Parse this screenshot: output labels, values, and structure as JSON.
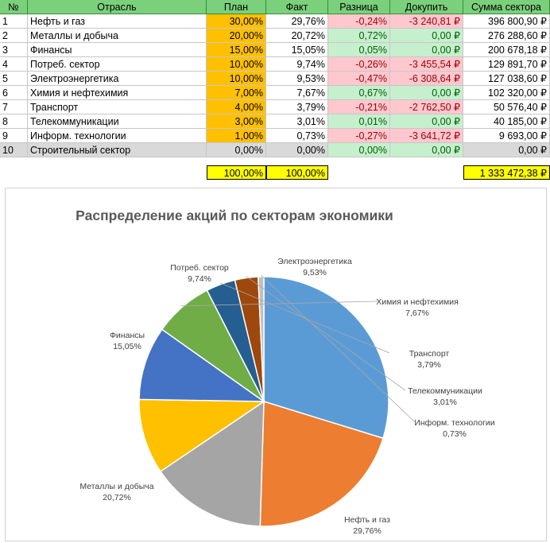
{
  "table": {
    "headers": [
      "№",
      "Отрасль",
      "План",
      "Факт",
      "Разница",
      "Докупить",
      "Сумма сектора"
    ],
    "rows": [
      {
        "n": "1",
        "sector": "Нефть и газ",
        "plan": "30,00%",
        "fact": "29,76%",
        "diff": "-0,24%",
        "buy": "-3 240,81 ₽",
        "sum": "396 800,90 ₽",
        "sign": "neg"
      },
      {
        "n": "2",
        "sector": "Металлы и добыча",
        "plan": "20,00%",
        "fact": "20,72%",
        "diff": "0,72%",
        "buy": "0,00 ₽",
        "sum": "276 288,60 ₽",
        "sign": "pos"
      },
      {
        "n": "3",
        "sector": "Финансы",
        "plan": "15,00%",
        "fact": "15,05%",
        "diff": "0,05%",
        "buy": "0,00 ₽",
        "sum": "200 678,18 ₽",
        "sign": "pos"
      },
      {
        "n": "4",
        "sector": "Потреб. сектор",
        "plan": "10,00%",
        "fact": "9,74%",
        "diff": "-0,26%",
        "buy": "-3 455,54 ₽",
        "sum": "129 891,70 ₽",
        "sign": "neg"
      },
      {
        "n": "5",
        "sector": "Электроэнергетика",
        "plan": "10,00%",
        "fact": "9,53%",
        "diff": "-0,47%",
        "buy": "-6 308,64 ₽",
        "sum": "127 038,60 ₽",
        "sign": "neg"
      },
      {
        "n": "6",
        "sector": "Химия и нефтехимия",
        "plan": "7,00%",
        "fact": "7,67%",
        "diff": "0,67%",
        "buy": "0,00 ₽",
        "sum": "102 320,00 ₽",
        "sign": "pos"
      },
      {
        "n": "7",
        "sector": "Транспорт",
        "plan": "4,00%",
        "fact": "3,79%",
        "diff": "-0,21%",
        "buy": "-2 762,50 ₽",
        "sum": "50 576,40 ₽",
        "sign": "neg"
      },
      {
        "n": "8",
        "sector": "Телекоммуникации",
        "plan": "3,00%",
        "fact": "3,01%",
        "diff": "0,01%",
        "buy": "0,00 ₽",
        "sum": "40 185,00 ₽",
        "sign": "pos"
      },
      {
        "n": "9",
        "sector": "Информ. технологии",
        "plan": "1,00%",
        "fact": "0,73%",
        "diff": "-0,27%",
        "buy": "-3 641,72 ₽",
        "sum": "9 693,00 ₽",
        "sign": "neg"
      },
      {
        "n": "10",
        "sector": "Строительный сектор",
        "plan": "0,00%",
        "fact": "0,00%",
        "diff": "0,00%",
        "buy": "0,00 ₽",
        "sum": "0,00 ₽",
        "sign": "pos"
      }
    ],
    "totals": {
      "plan": "100,00%",
      "fact": "100,00%",
      "sum": "1 333 472,38 ₽"
    }
  },
  "colors": {
    "header_green": "#7bd07b",
    "plan_orange": "#ffc000",
    "negative_fill": "#ffc7ce",
    "negative_text": "#9c0006",
    "positive_fill": "#c6efce",
    "positive_text": "#006100",
    "total_yellow": "#ffff00"
  },
  "chart_data": {
    "type": "pie",
    "title": "Распределение акций по секторам экономики",
    "slices": [
      {
        "label": "Нефть и газ",
        "value": 29.76,
        "value_label": "29,76%",
        "color": "#5b9bd5"
      },
      {
        "label": "Металлы и добыча",
        "value": 20.72,
        "value_label": "20,72%",
        "color": "#ed7d31"
      },
      {
        "label": "Финансы",
        "value": 15.05,
        "value_label": "15,05%",
        "color": "#a5a5a5"
      },
      {
        "label": "Потреб. сектор",
        "value": 9.74,
        "value_label": "9,74%",
        "color": "#ffc000"
      },
      {
        "label": "Электроэнергетика",
        "value": 9.53,
        "value_label": "9,53%",
        "color": "#4472c4"
      },
      {
        "label": "Химия и нефтехимия",
        "value": 7.67,
        "value_label": "7,67%",
        "color": "#70ad47"
      },
      {
        "label": "Транспорт",
        "value": 3.79,
        "value_label": "3,79%",
        "color": "#255e91"
      },
      {
        "label": "Телекоммуникации",
        "value": 3.01,
        "value_label": "3,01%",
        "color": "#9e480e"
      },
      {
        "label": "Информ. технологии",
        "value": 0.73,
        "value_label": "0,73%",
        "color": "#c0c0c0"
      }
    ],
    "legend": "none"
  }
}
